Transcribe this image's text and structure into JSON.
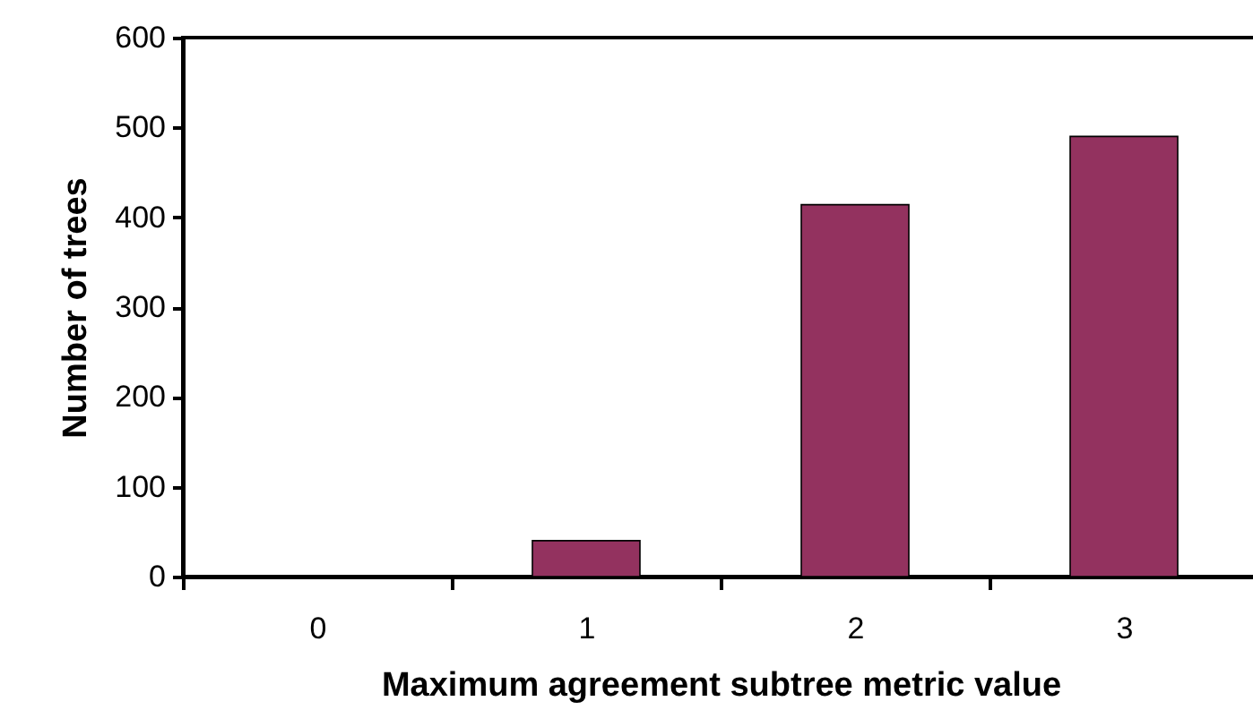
{
  "chart_data": {
    "type": "bar",
    "xlabel": "Maximum agreement subtree metric value",
    "ylabel": "Number of trees",
    "categories": [
      "0",
      "1",
      "2",
      "3"
    ],
    "values": [
      0,
      40,
      414,
      490
    ],
    "color": "#93325f",
    "ylim": [
      0,
      600
    ],
    "yticks": [
      0,
      100,
      200,
      300,
      400,
      500,
      600
    ],
    "grid": false,
    "legend": false
  }
}
